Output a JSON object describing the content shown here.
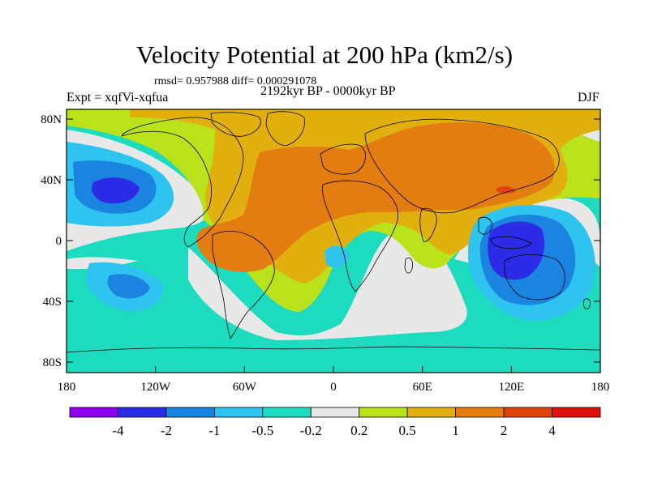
{
  "title": "Velocity Potential at 200 hPa (km2/s)",
  "stats": "rmsd= 0.957988 diff= 0.000291078",
  "left_label": "Expt = xqfVi-xqfua",
  "center_label": "2192kyr BP - 0000kyr BP",
  "right_label": "DJF",
  "lat_ticks": [
    "80N",
    "40N",
    "0",
    "40S",
    "80S"
  ],
  "lon_ticks": [
    "180",
    "120W",
    "60W",
    "0",
    "60E",
    "120E",
    "180"
  ],
  "colorbar_labels": [
    "-4",
    "-2",
    "-1",
    "-0.5",
    "-0.2",
    "0.2",
    "0.5",
    "1",
    "2",
    "4"
  ],
  "colors": {
    "bins": [
      "#8f00ef",
      "#2c2ce6",
      "#1a84e0",
      "#2ec4ef",
      "#1ddbbe",
      "#e8e8e8",
      "#b9e21a",
      "#e2b00e",
      "#e37c11",
      "#e0440e",
      "#e0100e"
    ],
    "coast": "#000000"
  }
}
